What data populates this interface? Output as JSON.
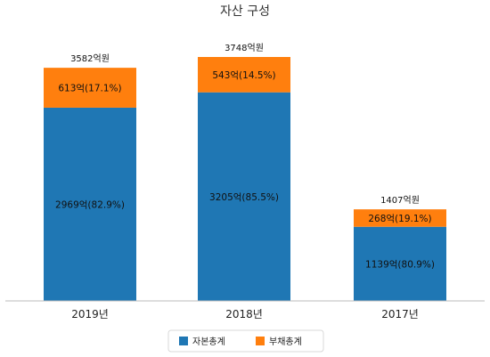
{
  "chart_data": {
    "type": "bar",
    "stacked": true,
    "title": "자산 구성",
    "categories": [
      "2019년",
      "2018년",
      "2017년"
    ],
    "series": [
      {
        "name": "자본총계",
        "values": [
          2969,
          3205,
          1139
        ],
        "labels": [
          "2969억(82.9%)",
          "3205억(85.5%)",
          "1139억(80.9%)"
        ],
        "color": "#1f77b4"
      },
      {
        "name": "부채총계",
        "values": [
          613,
          543,
          268
        ],
        "labels": [
          "613억(17.1%)",
          "543억(14.5%)",
          "268억(19.1%)"
        ],
        "color": "#ff7f0e"
      }
    ],
    "totals": [
      3582,
      3748,
      1407
    ],
    "total_labels": [
      "3582억원",
      "3748억원",
      "1407억원"
    ],
    "ylim": [
      0,
      3748
    ],
    "grid": false,
    "legend": "bottom"
  }
}
